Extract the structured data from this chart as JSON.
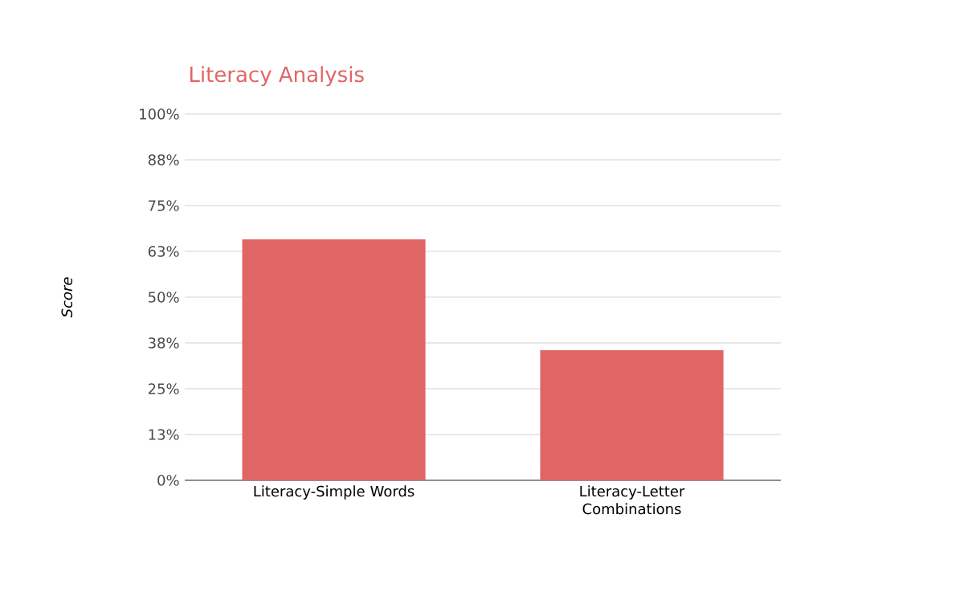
{
  "chart_data": {
    "type": "bar",
    "title": "Literacy Analysis",
    "ylabel": "Score",
    "categories": [
      "Literacy-Simple Words",
      "Literacy-Letter Combinations"
    ],
    "values": [
      65.8,
      35.5
    ],
    "color": "#e06666",
    "ylim": [
      0,
      100
    ],
    "yticks": [
      {
        "value": 0,
        "label": "0%"
      },
      {
        "value": 12.5,
        "label": "13%"
      },
      {
        "value": 25,
        "label": "25%"
      },
      {
        "value": 37.5,
        "label": "38%"
      },
      {
        "value": 50,
        "label": "50%"
      },
      {
        "value": 62.5,
        "label": "63%"
      },
      {
        "value": 75,
        "label": "75%"
      },
      {
        "value": 87.5,
        "label": "88%"
      },
      {
        "value": 100,
        "label": "100%"
      }
    ],
    "grid": "y"
  }
}
